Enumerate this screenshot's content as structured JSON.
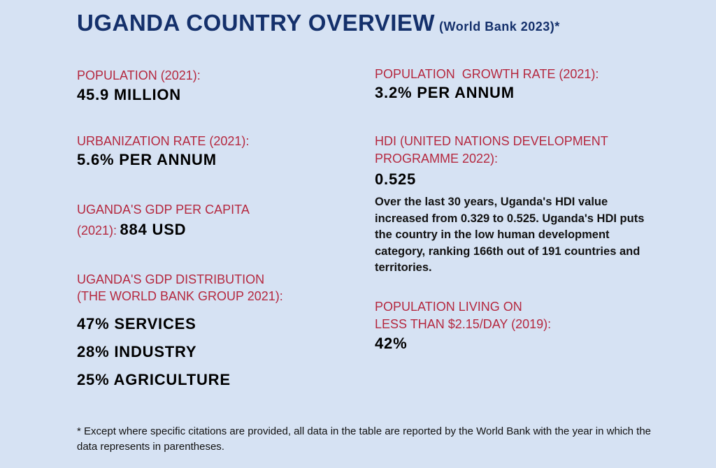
{
  "title": "UGANDA COUNTRY OVERVIEW",
  "title_note": "(World Bank 2023)*",
  "left": {
    "population_label": "POPULATION (2021):",
    "population_value": "45.9 MILLION",
    "urbanization_label": "URBANIZATION RATE (2021):",
    "urbanization_value": "5.6% PER ANNUM",
    "gdp_pc_label_1": "UGANDA'S GDP PER CAPITA",
    "gdp_pc_label_2": "(2021):",
    "gdp_pc_value": "884 USD",
    "gdp_dist_label_1": "UGANDA'S GDP DISTRIBUTION",
    "gdp_dist_label_2": "(THE WORLD BANK GROUP 2021):",
    "gdp_dist": [
      "47% SERVICES",
      "28% INDUSTRY",
      "25% AGRICULTURE"
    ]
  },
  "right": {
    "growth_label": "POPULATION  GROWTH RATE (2021):",
    "growth_value": "3.2% PER ANNUM",
    "hdi_label_1": "HDI (UNITED NATIONS DEVELOPMENT",
    "hdi_label_2": "PROGRAMME 2022):",
    "hdi_value": "0.525",
    "hdi_text": "Over the last 30 years, Uganda's HDI value increased from 0.329 to 0.525. Uganda's HDI puts the country in the low human development category, ranking 166th out of 191 countries and territories.",
    "poverty_label_1": "POPULATION LIVING ON",
    "poverty_label_2": "LESS THAN $2.15/DAY (2019):",
    "poverty_value": "42%"
  },
  "footnote": "* Except where specific citations are provided, all data in the table are reported by the World Bank with the year in which the data represents in parentheses.",
  "colors": {
    "background": "#d6e2f3",
    "title": "#14306b",
    "label": "#b5283f",
    "value": "#000000"
  }
}
